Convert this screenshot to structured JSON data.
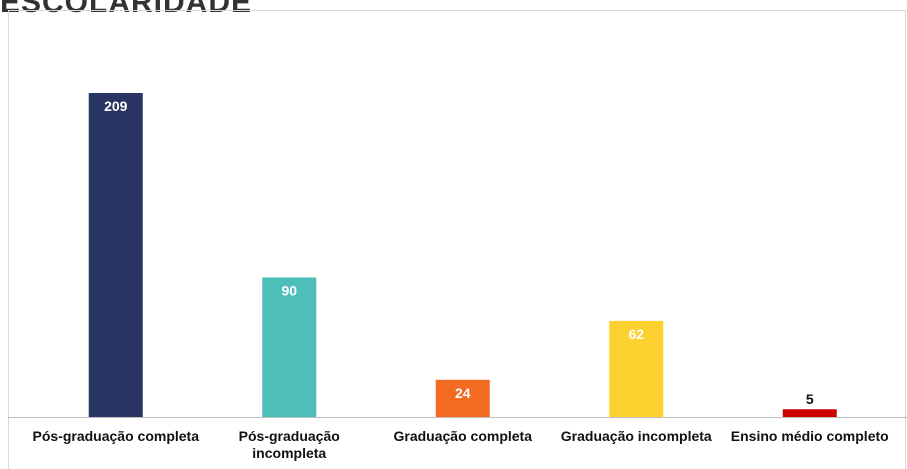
{
  "chart_data": {
    "type": "bar",
    "title": "ESCOLARIDADE",
    "categories": [
      "Pós-graduação completa",
      "Pós-graduação incompleta",
      "Graduação completa",
      "Graduação incompleta",
      "Ensino médio completo"
    ],
    "values": [
      209,
      90,
      24,
      62,
      5
    ],
    "colors": [
      "#283462",
      "#4dbfb8",
      "#f26b21",
      "#fdd130",
      "#cc0000"
    ]
  }
}
